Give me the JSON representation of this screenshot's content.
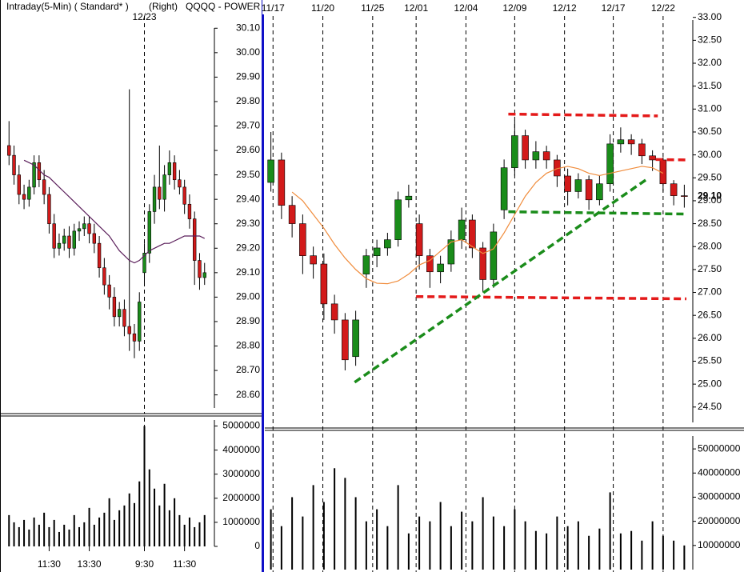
{
  "chart_data": [
    {
      "type": "candlestick",
      "title": "Intraday(5-Min) ( Standard* )",
      "subtitle": "(Right)",
      "symbol": "QQQQ - POWER",
      "session_label": {
        "value": 27,
        "label": "12/23"
      },
      "up_color": "#1a8c1a",
      "down_color": "#d21a1a",
      "open": [
        29.62,
        29.58,
        29.5,
        29.42,
        29.4,
        29.45,
        29.55,
        29.48,
        29.42,
        29.3,
        29.2,
        29.22,
        29.25,
        29.2,
        29.27,
        29.28,
        29.3,
        29.26,
        29.22,
        29.12,
        29.05,
        29.0,
        28.92,
        28.95,
        28.88,
        28.85,
        28.82,
        29.1,
        29.18,
        29.35,
        29.45,
        29.4,
        29.5,
        29.55,
        29.48,
        29.45,
        29.38,
        29.32,
        29.15,
        29.08
      ],
      "high": [
        29.72,
        29.62,
        29.54,
        29.46,
        29.48,
        29.58,
        29.58,
        29.52,
        29.45,
        29.34,
        29.26,
        29.28,
        29.29,
        29.3,
        29.31,
        29.33,
        29.33,
        29.3,
        29.25,
        29.16,
        29.09,
        29.04,
        28.98,
        28.99,
        29.85,
        28.89,
        29.02,
        29.22,
        29.38,
        29.5,
        29.62,
        29.54,
        29.6,
        29.58,
        29.52,
        29.48,
        29.42,
        29.35,
        29.18,
        29.14
      ],
      "low": [
        29.54,
        29.46,
        29.38,
        29.36,
        29.37,
        29.42,
        29.45,
        29.38,
        29.26,
        29.16,
        29.17,
        29.19,
        29.16,
        29.17,
        29.23,
        29.25,
        29.22,
        29.18,
        29.08,
        29.01,
        28.95,
        28.88,
        28.88,
        28.84,
        28.78,
        28.75,
        28.78,
        29.05,
        29.14,
        29.3,
        29.36,
        29.35,
        29.46,
        29.44,
        29.42,
        29.34,
        29.28,
        29.05,
        29.03,
        29.05
      ],
      "close": [
        29.58,
        29.5,
        29.42,
        29.4,
        29.45,
        29.55,
        29.48,
        29.42,
        29.3,
        29.2,
        29.22,
        29.25,
        29.2,
        29.27,
        29.28,
        29.3,
        29.26,
        29.22,
        29.12,
        29.05,
        29.0,
        28.92,
        28.95,
        28.88,
        28.85,
        28.82,
        28.98,
        29.18,
        29.35,
        29.45,
        29.4,
        29.5,
        29.55,
        29.48,
        29.45,
        29.38,
        29.32,
        29.15,
        29.08,
        29.1
      ],
      "ma": {
        "color": "#5a1e5a",
        "values": [
          null,
          null,
          null,
          29.56,
          29.55,
          29.54,
          29.52,
          29.5,
          29.49,
          29.47,
          29.45,
          29.43,
          29.41,
          29.39,
          29.37,
          29.35,
          29.33,
          29.31,
          29.29,
          29.27,
          29.25,
          29.22,
          29.19,
          29.17,
          29.15,
          29.14,
          29.15,
          29.17,
          29.19,
          29.2,
          29.21,
          29.22,
          29.22,
          29.23,
          29.24,
          29.25,
          29.25,
          29.25,
          29.25,
          29.24
        ]
      },
      "xlim": [
        -1,
        40
      ],
      "session_breaks": [
        27
      ],
      "ylim": [
        28.53,
        30.15
      ],
      "yticks": [
        {
          "value": 28.6,
          "label": "28.60"
        },
        {
          "value": 28.7,
          "label": "28.70"
        },
        {
          "value": 28.8,
          "label": "28.80"
        },
        {
          "value": 28.9,
          "label": "28.90"
        },
        {
          "value": 29.0,
          "label": "29.00"
        },
        {
          "value": 29.1,
          "label": "29.10"
        },
        {
          "value": 29.2,
          "label": "29.20"
        },
        {
          "value": 29.3,
          "label": "29.30"
        },
        {
          "value": 29.4,
          "label": "29.40"
        },
        {
          "value": 29.5,
          "label": "29.50"
        },
        {
          "value": 29.6,
          "label": "29.60"
        },
        {
          "value": 29.7,
          "label": "29.70"
        },
        {
          "value": 29.8,
          "label": "29.80"
        },
        {
          "value": 29.9,
          "label": "29.90"
        },
        {
          "value": 30.0,
          "label": "30.00"
        },
        {
          "value": 30.1,
          "label": "30.10"
        }
      ]
    },
    {
      "type": "bar",
      "color": "#000000",
      "values": [
        1300000,
        1000000,
        800000,
        1100000,
        700000,
        1200000,
        900000,
        1400000,
        800000,
        1100000,
        600000,
        900000,
        700000,
        1300000,
        800000,
        1000000,
        1600000,
        900000,
        1200000,
        1400000,
        2000000,
        1100000,
        1500000,
        1700000,
        2200000,
        1800000,
        2700000,
        5000000,
        3200000,
        2400000,
        1700000,
        2600000,
        1500000,
        2000000,
        1300000,
        900000,
        1200000,
        800000,
        1000000,
        1300000
      ],
      "xlim": [
        -1,
        40
      ],
      "session_breaks": [
        27
      ],
      "xticks": [
        {
          "value": 8,
          "label": "11:30"
        },
        {
          "value": 16,
          "label": "13:30"
        },
        {
          "value": 27,
          "label": "9:30"
        },
        {
          "value": 35,
          "label": "11:30"
        }
      ],
      "ylim": [
        0,
        5350000
      ],
      "yticks": [
        0,
        1000000,
        2000000,
        3000000,
        4000000,
        5000000
      ]
    },
    {
      "type": "candlestick",
      "up_color": "#1a8c1a",
      "down_color": "#d21a1a",
      "open": [
        29.4,
        29.89,
        28.9,
        28.5,
        27.8,
        27.62,
        26.75,
        26.4,
        25.6,
        27.4,
        27.8,
        27.97,
        28.15,
        29.02,
        28.5,
        27.8,
        27.45,
        27.62,
        28.15,
        28.58,
        27.97,
        27.28,
        28.8,
        29.72,
        30.42,
        29.89,
        30.07,
        29.89,
        29.54,
        29.2,
        29.46,
        29.02,
        29.37,
        30.24,
        30.33,
        30.24,
        29.98,
        29.89,
        29.37,
        29.11
      ],
      "high": [
        30.5,
        30.05,
        29.1,
        28.7,
        28.0,
        27.85,
        26.95,
        26.55,
        26.6,
        27.95,
        28.15,
        28.3,
        29.2,
        29.35,
        28.7,
        27.95,
        27.8,
        28.35,
        28.85,
        28.7,
        28.1,
        28.5,
        29.9,
        30.75,
        30.55,
        30.3,
        30.2,
        30.0,
        29.7,
        29.6,
        29.55,
        29.55,
        30.45,
        30.6,
        30.45,
        30.35,
        30.1,
        29.95,
        29.45,
        29.35
      ],
      "low": [
        29.2,
        28.6,
        28.2,
        27.4,
        27.3,
        26.4,
        26.1,
        25.3,
        25.4,
        27.1,
        27.55,
        27.8,
        28.0,
        28.85,
        27.5,
        27.1,
        27.2,
        27.45,
        27.95,
        27.75,
        27.0,
        27.1,
        28.6,
        29.55,
        29.7,
        29.7,
        29.7,
        29.3,
        28.9,
        29.05,
        28.8,
        28.9,
        29.2,
        30.05,
        30.0,
        29.8,
        29.65,
        29.2,
        28.9,
        28.85
      ],
      "close": [
        29.89,
        28.9,
        28.5,
        27.8,
        27.62,
        26.75,
        26.4,
        25.53,
        26.4,
        27.8,
        27.97,
        28.15,
        29.02,
        29.1,
        27.8,
        27.45,
        27.62,
        28.15,
        28.58,
        27.97,
        27.28,
        28.32,
        29.72,
        30.42,
        29.89,
        30.07,
        29.89,
        29.54,
        29.2,
        29.46,
        29.02,
        29.37,
        30.24,
        30.33,
        30.24,
        29.98,
        29.89,
        29.37,
        29.11,
        29.1
      ],
      "ma": {
        "color": "#f08c3c",
        "values": [
          null,
          null,
          29.19,
          29.0,
          28.7,
          28.4,
          28.05,
          27.75,
          27.5,
          27.3,
          27.2,
          27.19,
          27.25,
          27.4,
          27.6,
          27.7,
          27.9,
          28.1,
          28.15,
          28.0,
          27.85,
          27.95,
          28.3,
          28.7,
          29.1,
          29.4,
          29.6,
          29.7,
          29.75,
          29.7,
          29.6,
          29.55,
          29.6,
          29.65,
          29.7,
          29.75,
          29.72,
          29.6,
          null,
          null
        ]
      },
      "trendlines": [
        {
          "color": "#e41a1a",
          "x": [
            22.4,
            36.5
          ],
          "y": [
            30.89,
            30.85
          ]
        },
        {
          "color": "#e41a1a",
          "x": [
            13.7,
            39.2
          ],
          "y": [
            26.91,
            26.86
          ]
        },
        {
          "color": "#e41a1a",
          "x": [
            36.3,
            39.2
          ],
          "y": [
            29.9,
            29.89
          ]
        },
        {
          "color": "#1a8c1a",
          "x": [
            22.4,
            39.2
          ],
          "y": [
            28.76,
            28.71
          ]
        },
        {
          "color": "#1a8c1a",
          "x": [
            7.9,
            35.4
          ],
          "y": [
            25.04,
            29.46
          ]
        }
      ],
      "xlim": [
        -0.5,
        39.5
      ],
      "xticks": [
        {
          "value": 0.2,
          "label": "11/17"
        },
        {
          "value": 4.9,
          "label": "11/20"
        },
        {
          "value": 9.6,
          "label": "11/25"
        },
        {
          "value": 13.7,
          "label": "12/01"
        },
        {
          "value": 18.4,
          "label": "12/04"
        },
        {
          "value": 23.0,
          "label": "12/09"
        },
        {
          "value": 27.7,
          "label": "12/12"
        },
        {
          "value": 32.3,
          "label": "12/17"
        },
        {
          "value": 37.0,
          "label": "12/22"
        }
      ],
      "ylim": [
        24.13,
        33.03
      ],
      "last_label": {
        "value": 29.1,
        "label": "29.10"
      },
      "yticks": [
        {
          "value": 24.5,
          "label": "24.50"
        },
        {
          "value": 25,
          "label": "25.00"
        },
        {
          "value": 25.5,
          "label": "25.50"
        },
        {
          "value": 26,
          "label": "26.00"
        },
        {
          "value": 26.5,
          "label": "26.50"
        },
        {
          "value": 27,
          "label": "27.00"
        },
        {
          "value": 27.5,
          "label": "27.50"
        },
        {
          "value": 28,
          "label": "28.00"
        },
        {
          "value": 28.5,
          "label": "28.50"
        },
        {
          "value": 29,
          "label": "29.00"
        },
        {
          "value": 29.5,
          "label": "29.50"
        },
        {
          "value": 30,
          "label": "30.00"
        },
        {
          "value": 30.5,
          "label": "30.50"
        },
        {
          "value": 31,
          "label": "31.00"
        },
        {
          "value": 31.5,
          "label": "31.50"
        },
        {
          "value": 32,
          "label": "32.00"
        },
        {
          "value": 32.5,
          "label": "32.50"
        },
        {
          "value": 33,
          "label": "33.00"
        }
      ]
    },
    {
      "type": "bar",
      "color": "#000000",
      "values": [
        25000000,
        18000000,
        30000000,
        22000000,
        35000000,
        28000000,
        42000000,
        38000000,
        30000000,
        20000000,
        25000000,
        18000000,
        35000000,
        15000000,
        22000000,
        20000000,
        28000000,
        18000000,
        24000000,
        20000000,
        30000000,
        22000000,
        18000000,
        25000000,
        20000000,
        16000000,
        15000000,
        22000000,
        18000000,
        20000000,
        14000000,
        17000000,
        32000000,
        15000000,
        16000000,
        12000000,
        20000000,
        14000000,
        12000000,
        10000000
      ],
      "xlim": [
        -0.5,
        39.5
      ],
      "ylim": [
        0,
        57000000
      ],
      "yticks": [
        10000000,
        20000000,
        30000000,
        40000000,
        50000000
      ]
    }
  ]
}
